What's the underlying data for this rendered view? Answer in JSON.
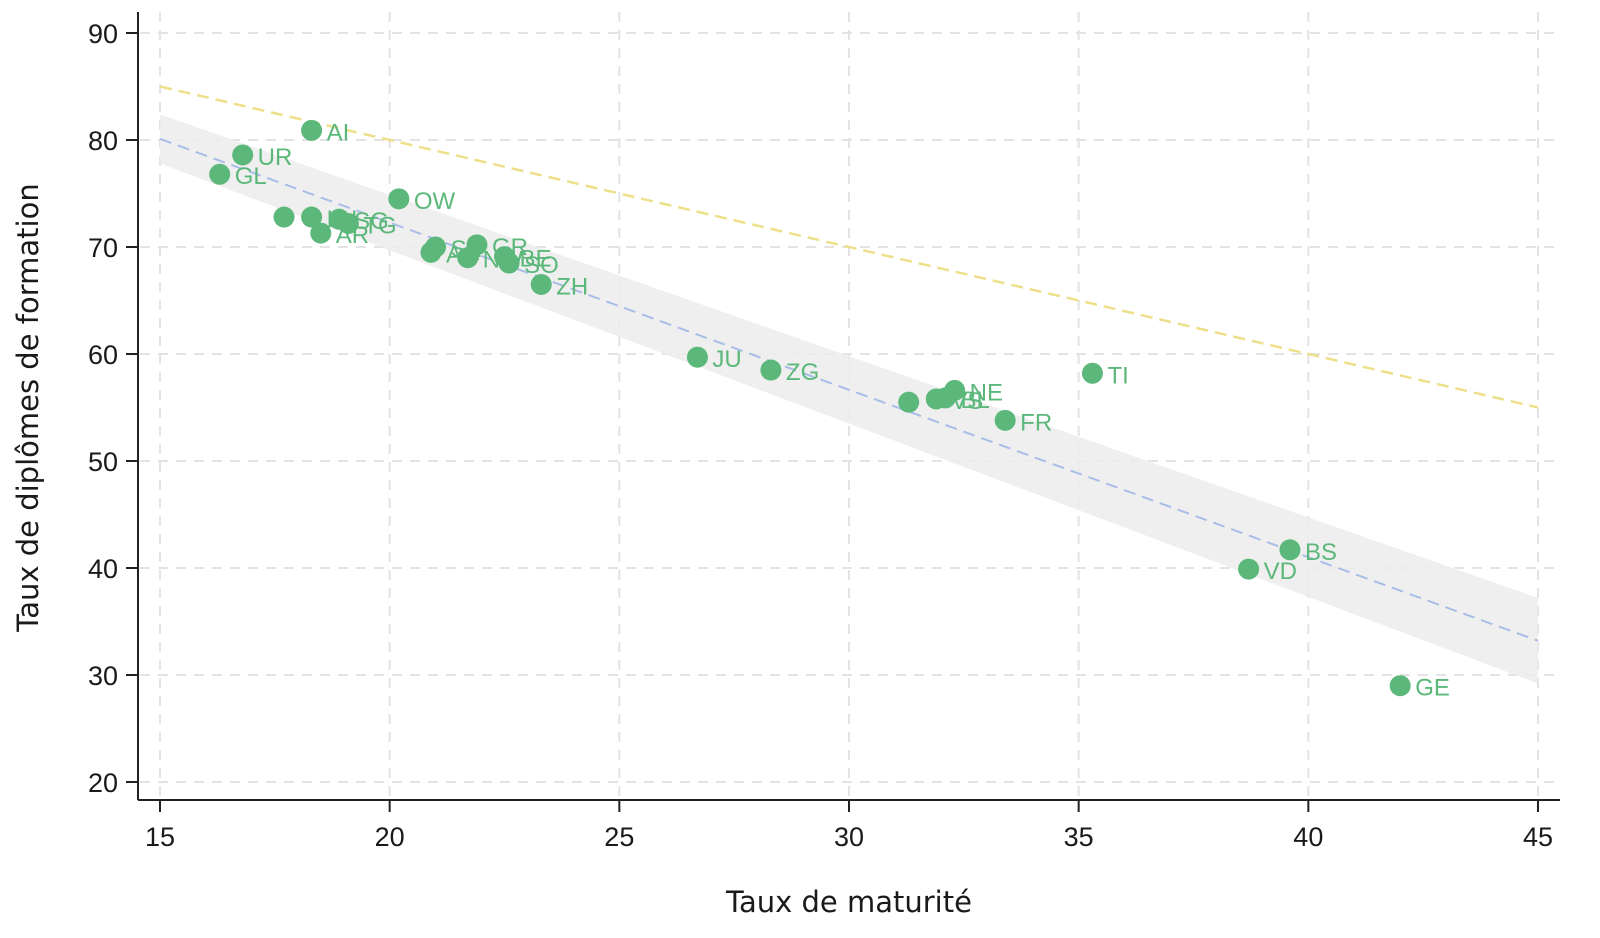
{
  "chart_data": {
    "type": "scatter",
    "title": "",
    "xlabel": "Taux de maturité",
    "ylabel": "Taux de diplômes de formation",
    "xlim": [
      15,
      45
    ],
    "ylim": [
      20,
      90
    ],
    "xticks": [
      15,
      20,
      25,
      30,
      35,
      40,
      45
    ],
    "yticks": [
      20,
      30,
      40,
      50,
      60,
      70,
      80,
      90
    ],
    "grid": true,
    "colors": {
      "points": "#5cb87a",
      "fit_line": "#a9bde8",
      "reference_line": "#eee08a",
      "confidence_band": "#ececec",
      "grid": "#e3e3e3",
      "axis": "#222222"
    },
    "reference_line": {
      "x": [
        15,
        45
      ],
      "y": [
        85,
        55
      ]
    },
    "fit_line": {
      "x": [
        15,
        45
      ],
      "y": [
        80.1,
        33.2
      ]
    },
    "confidence_band": {
      "x": [
        15,
        45
      ],
      "upper": [
        82.4,
        37.2
      ],
      "lower": [
        77.8,
        29.2
      ]
    },
    "points": [
      {
        "label": "AI",
        "x": 18.3,
        "y": 80.9
      },
      {
        "label": "UR",
        "x": 16.8,
        "y": 78.6
      },
      {
        "label": "GL",
        "x": 16.3,
        "y": 76.8
      },
      {
        "label": "OW",
        "x": 20.2,
        "y": 74.5
      },
      {
        "label": "",
        "x": 17.7,
        "y": 72.8
      },
      {
        "label": "LU",
        "x": 18.3,
        "y": 72.8
      },
      {
        "label": "SG",
        "x": 18.9,
        "y": 72.6
      },
      {
        "label": "TG",
        "x": 19.1,
        "y": 72.2
      },
      {
        "label": "AR",
        "x": 18.5,
        "y": 71.3
      },
      {
        "label": "SZ",
        "x": 21.0,
        "y": 70.0
      },
      {
        "label": "AG",
        "x": 20.9,
        "y": 69.5
      },
      {
        "label": "GR",
        "x": 21.9,
        "y": 70.2
      },
      {
        "label": "NW",
        "x": 21.7,
        "y": 69.0
      },
      {
        "label": "BE",
        "x": 22.5,
        "y": 69.1
      },
      {
        "label": "SO",
        "x": 22.6,
        "y": 68.5
      },
      {
        "label": "ZH",
        "x": 23.3,
        "y": 66.5
      },
      {
        "label": "JU",
        "x": 26.7,
        "y": 59.7
      },
      {
        "label": "ZG",
        "x": 28.3,
        "y": 58.5
      },
      {
        "label": "TI",
        "x": 35.3,
        "y": 58.2
      },
      {
        "label": "",
        "x": 31.3,
        "y": 55.5
      },
      {
        "label": "VS",
        "x": 31.9,
        "y": 55.8
      },
      {
        "label": "BL",
        "x": 32.1,
        "y": 55.9
      },
      {
        "label": "NE",
        "x": 32.3,
        "y": 56.6
      },
      {
        "label": "FR",
        "x": 33.4,
        "y": 53.8
      },
      {
        "label": "BS",
        "x": 39.6,
        "y": 41.7
      },
      {
        "label": "VD",
        "x": 38.7,
        "y": 39.9
      },
      {
        "label": "GE",
        "x": 42.0,
        "y": 29.0
      }
    ]
  }
}
